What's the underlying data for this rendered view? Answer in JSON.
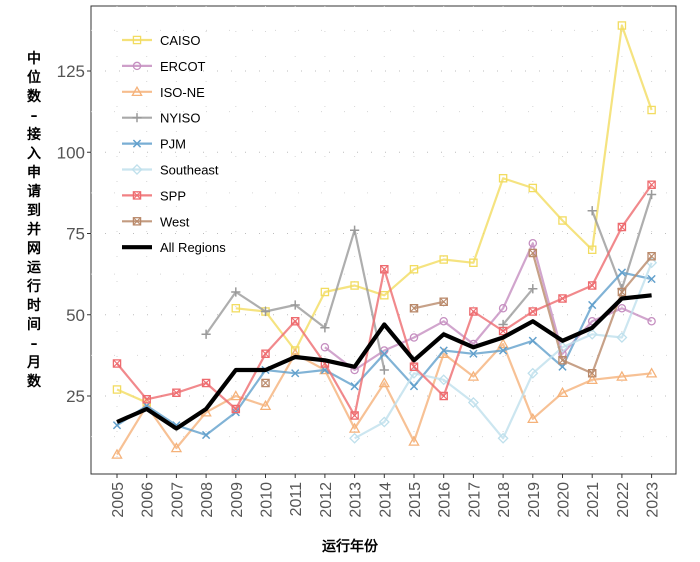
{
  "chart_data": {
    "type": "line",
    "title": "",
    "xlabel": "运行年份",
    "ylabel": "中位数-接入申请到并网运行时间-月数",
    "x": [
      2005,
      2006,
      2007,
      2008,
      2009,
      2010,
      2011,
      2012,
      2013,
      2014,
      2015,
      2016,
      2017,
      2018,
      2019,
      2020,
      2021,
      2022,
      2023
    ],
    "x_tick_labels": [
      "2005",
      "2006",
      "2007",
      "2008",
      "2009",
      "2010",
      "2011",
      "2012",
      "2013",
      "2014",
      "2015",
      "2016",
      "2017",
      "2018",
      "2019",
      "2020",
      "2021",
      "2022",
      "2023"
    ],
    "y_ticks": [
      25,
      50,
      75,
      100,
      125
    ],
    "y_tick_labels": [
      "25",
      "50",
      "75",
      "100",
      "125"
    ],
    "ylim": [
      1,
      145
    ],
    "grid": "dotted",
    "legend_position": "top-left-inside",
    "series": [
      {
        "name": "CAISO",
        "color": "#f2dc60",
        "marker": "square",
        "values": [
          27,
          23,
          null,
          null,
          52,
          51,
          39,
          57,
          59,
          56,
          64,
          67,
          66,
          92,
          89,
          79,
          70,
          139,
          113
        ]
      },
      {
        "name": "ERCOT",
        "color": "#c58ec0",
        "marker": "circle",
        "values": [
          null,
          null,
          null,
          null,
          null,
          null,
          null,
          40,
          33,
          39,
          43,
          48,
          41,
          52,
          72,
          38,
          48,
          52,
          48
        ]
      },
      {
        "name": "ISO-NE",
        "color": "#f5b27a",
        "marker": "triangle",
        "values": [
          7,
          22,
          9,
          20,
          25,
          22,
          38,
          33,
          15,
          29,
          11,
          38,
          31,
          41,
          18,
          26,
          30,
          31,
          32
        ]
      },
      {
        "name": "NYISO",
        "color": "#9a9a9a",
        "marker": "plus",
        "values": [
          null,
          null,
          null,
          44,
          57,
          51,
          53,
          46,
          76,
          33,
          null,
          null,
          null,
          47,
          58,
          null,
          82,
          58,
          87
        ]
      },
      {
        "name": "PJM",
        "color": "#62a0cc",
        "marker": "x",
        "values": [
          16,
          22,
          16,
          13,
          20,
          33,
          32,
          33,
          28,
          38,
          28,
          39,
          38,
          39,
          42,
          34,
          53,
          63,
          61
        ]
      },
      {
        "name": "Southeast",
        "color": "#bfe0ec",
        "marker": "diamond",
        "values": [
          null,
          null,
          null,
          null,
          null,
          null,
          null,
          null,
          12,
          17,
          32,
          30,
          23,
          12,
          32,
          40,
          44,
          43,
          66
        ]
      },
      {
        "name": "SPP",
        "color": "#ee6b6f",
        "marker": "square-x",
        "values": [
          35,
          24,
          26,
          29,
          21,
          38,
          48,
          35,
          19,
          64,
          34,
          25,
          51,
          45,
          51,
          55,
          59,
          77,
          90
        ]
      },
      {
        "name": "West",
        "color": "#b9896a",
        "marker": "square-x",
        "values": [
          null,
          null,
          null,
          null,
          null,
          29,
          null,
          null,
          null,
          null,
          52,
          54,
          null,
          null,
          69,
          36,
          32,
          57,
          68
        ]
      },
      {
        "name": "All Regions",
        "color": "#000000",
        "marker": "none",
        "values": [
          17,
          21,
          15,
          21,
          33,
          33,
          37,
          36,
          34,
          47,
          36,
          44,
          40,
          43,
          48,
          42,
          46,
          55,
          56
        ]
      }
    ]
  }
}
